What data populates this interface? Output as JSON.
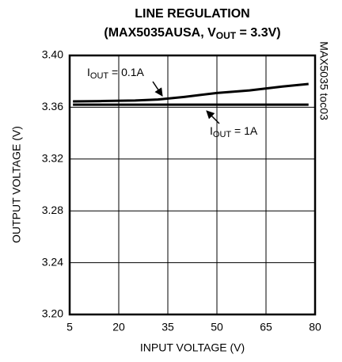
{
  "chart_data": {
    "type": "line",
    "title": "LINE REGULATION",
    "subtitle": {
      "before": "(MAX5035AUSA, V",
      "sub": "OUT",
      "after": " = 3.3V)"
    },
    "xlabel": "INPUT VOLTAGE (V)",
    "ylabel": "OUTPUT VOLTAGE (V)",
    "side_note": "MAX5035 toc03",
    "annotations": [
      {
        "text": "I",
        "sub": "OUT",
        "after": " = 0.1A"
      },
      {
        "text": "I",
        "sub": "OUT",
        "after": " = 1A"
      }
    ],
    "x": [
      6,
      15,
      25,
      32,
      40,
      50,
      60,
      70,
      78
    ],
    "series": [
      {
        "color": "#000000",
        "values": [
          3.3645,
          3.3648,
          3.3652,
          3.366,
          3.368,
          3.371,
          3.373,
          3.376,
          3.378
        ]
      },
      {
        "color": "#000000",
        "values": [
          3.362,
          3.362,
          3.362,
          3.362,
          3.362,
          3.362,
          3.362,
          3.362,
          3.362
        ]
      }
    ],
    "xlim": [
      5,
      80
    ],
    "xticks": [
      5,
      20,
      35,
      50,
      65,
      80
    ],
    "ylim": [
      3.2,
      3.4
    ],
    "yticks": [
      {
        "value": 3.2,
        "label": "3.20"
      },
      3.24,
      3.28,
      3.32,
      3.36,
      {
        "value": 3.4,
        "label": "3.40"
      }
    ],
    "grid": true
  }
}
